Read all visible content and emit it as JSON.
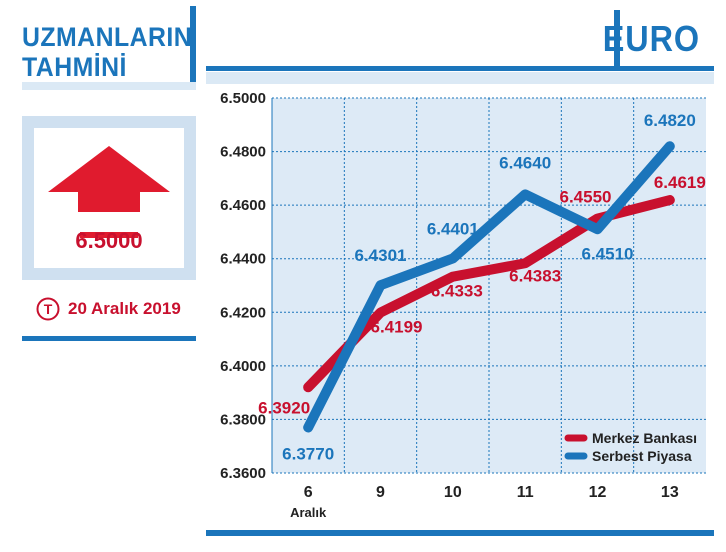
{
  "left_panel": {
    "title_line1": "UZMANLARIN",
    "title_line2": "TAHMİNİ",
    "forecast_value": "6.5000",
    "date": "20 Aralık 2019",
    "logo_letter": "T",
    "arrow_icon": "up-arrow-icon"
  },
  "header": {
    "title": "EURO"
  },
  "colors": {
    "blue": "#1b75bb",
    "red": "#c8102e",
    "light_blue": "#dbe9f5",
    "plot_bg": "#ddeaf6"
  },
  "chart_data": {
    "type": "line",
    "categories": [
      "6",
      "9",
      "10",
      "11",
      "12",
      "13"
    ],
    "category_sublabel": "Aralık",
    "ylim": [
      6.36,
      6.5
    ],
    "yticks": [
      "6.5000",
      "6.4800",
      "6.4600",
      "6.4400",
      "6.4200",
      "6.4000",
      "6.3800",
      "6.3600"
    ],
    "grid": true,
    "legend_position": "bottom-right",
    "series": [
      {
        "name": "Merkez Bankası",
        "color": "#c8102e",
        "values": [
          6.392,
          6.4199,
          6.4333,
          6.4383,
          6.455,
          6.4619
        ],
        "labels": [
          "6.3920",
          "6.4199",
          "6.4333",
          "6.4383",
          "6.4550",
          "6.4619"
        ]
      },
      {
        "name": "Serbest Piyasa",
        "color": "#1b75bb",
        "values": [
          6.377,
          6.4301,
          6.4401,
          6.464,
          6.451,
          6.482
        ],
        "labels": [
          "6.3770",
          "6.4301",
          "6.4401",
          "6.4640",
          "6.4510",
          "6.4820"
        ]
      }
    ]
  }
}
